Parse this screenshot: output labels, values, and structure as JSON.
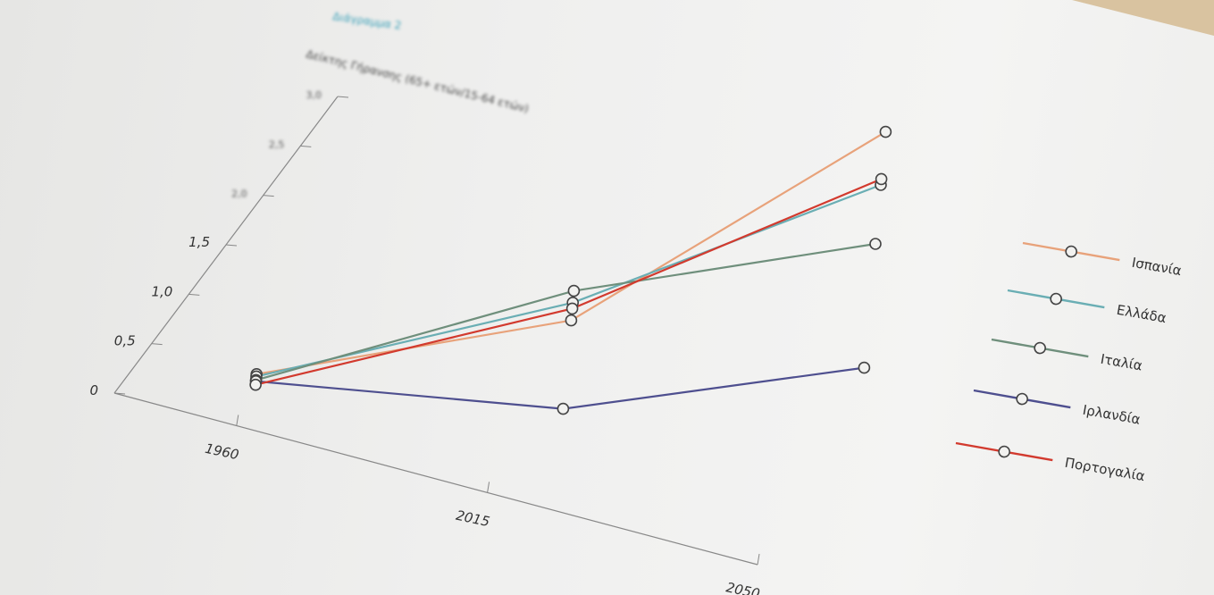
{
  "header": {
    "title": "Διάγραμμα 2",
    "subtitle": "Δείκτης Γήρανσης (65+ ετών/15-64 ετών)"
  },
  "chart_data": {
    "type": "line",
    "title": "Διάγραμμα 2",
    "subtitle": "Δείκτης Γήρανσης (65+ ετών/15-64 ετών)",
    "xlabel": "",
    "ylabel": "",
    "x_ticks": [
      "1960",
      "2015",
      "2050"
    ],
    "y_ticks": [
      "0",
      "0,5",
      "1,0",
      "1,5",
      "2,0",
      "2,5",
      "3,0"
    ],
    "grid": false,
    "legend_position": "right",
    "series": [
      {
        "name": "Ισπανία",
        "color": "#e8a27a",
        "x": [
          "1960",
          "2015",
          "2050"
        ],
        "values": [
          0.1,
          0.45,
          1.95
        ]
      },
      {
        "name": "Ελλάδα",
        "color": "#6aaeb4",
        "x": [
          "1960",
          "2015",
          "2050"
        ],
        "values": [
          0.08,
          0.6,
          1.5
        ]
      },
      {
        "name": "Ιταλία",
        "color": "#6f8f7c",
        "x": [
          "1960",
          "2015",
          "2050"
        ],
        "values": [
          0.05,
          0.7,
          1.0
        ]
      },
      {
        "name": "Ιρλανδία",
        "color": "#4e4f8f",
        "x": [
          "1960",
          "2015",
          "2050"
        ],
        "values": [
          0.04,
          -0.3,
          -0.05
        ]
      },
      {
        "name": "Πορτογαλία",
        "color": "#d23a2e",
        "x": [
          "1960",
          "2015",
          "2050"
        ],
        "values": [
          0.01,
          0.55,
          1.55
        ]
      }
    ]
  }
}
